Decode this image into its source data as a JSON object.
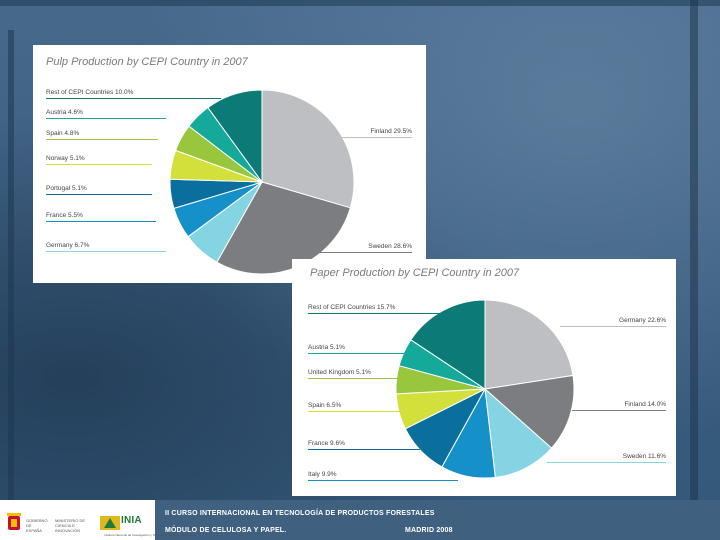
{
  "chart_data": [
    {
      "type": "pie",
      "title": "Pulp Production by CEPI Country in 2007",
      "categories": [
        "Finland",
        "Sweden",
        "Germany",
        "France",
        "Portugal",
        "Norway",
        "Spain",
        "Austria",
        "Rest of CEPI Countries"
      ],
      "values": [
        29.5,
        28.6,
        6.7,
        5.5,
        5.1,
        5.1,
        4.8,
        4.6,
        10.0
      ],
      "labels": [
        "Finland  29.5%",
        "Sweden  28.6%",
        "Germany  6.7%",
        "France  5.5%",
        "Portugal  5.1%",
        "Norway  5.1%",
        "Spain  4.8%",
        "Austria  4.6%",
        "Rest of CEPI Countries  10.0%"
      ],
      "colors": [
        "#bdbfc2",
        "#7b7d80",
        "#85d4e4",
        "#1690c9",
        "#0a6f9c",
        "#d3e03c",
        "#98c73e",
        "#15a99a",
        "#0c7b78"
      ]
    },
    {
      "type": "pie",
      "title": "Paper Production by CEPI Country in 2007",
      "categories": [
        "Germany",
        "Finland",
        "Sweden",
        "Italy",
        "France",
        "Spain",
        "United Kingdom",
        "Austria",
        "Rest of CEPI Countries"
      ],
      "values": [
        22.6,
        14.0,
        11.6,
        9.9,
        9.6,
        6.5,
        5.1,
        5.1,
        15.7
      ],
      "labels": [
        "Germany  22.6%",
        "Finland  14.0%",
        "Sweden  11.6%",
        "Italy  9.9%",
        "France  9.6%",
        "Spain  6.5%",
        "United Kingdom  5.1%",
        "Austria  5.1%",
        "Rest of CEPI Countries  15.7%"
      ],
      "colors": [
        "#bdbfc2",
        "#7b7d80",
        "#85d4e4",
        "#1690c9",
        "#0a6f9c",
        "#d3e03c",
        "#98c73e",
        "#15a99a",
        "#0c7b78"
      ]
    }
  ],
  "footer": {
    "line1": "II CURSO INTERNACIONAL EN TECNOLOGÍA DE PRODUCTOS FORESTALES",
    "line2": "MÓDULO DE CELULOSA Y PAPEL.",
    "line3": "MADRID 2008",
    "gov_text": "GOBIERNO DE ESPAÑA",
    "ministry_text": "MINISTERIO DE CIENCIA E INNOVACIÓN",
    "inia_text": "INIA",
    "inia_sub": "Instituto Nacional de Investigación y Tecnología Agraria y Alimentaria"
  }
}
